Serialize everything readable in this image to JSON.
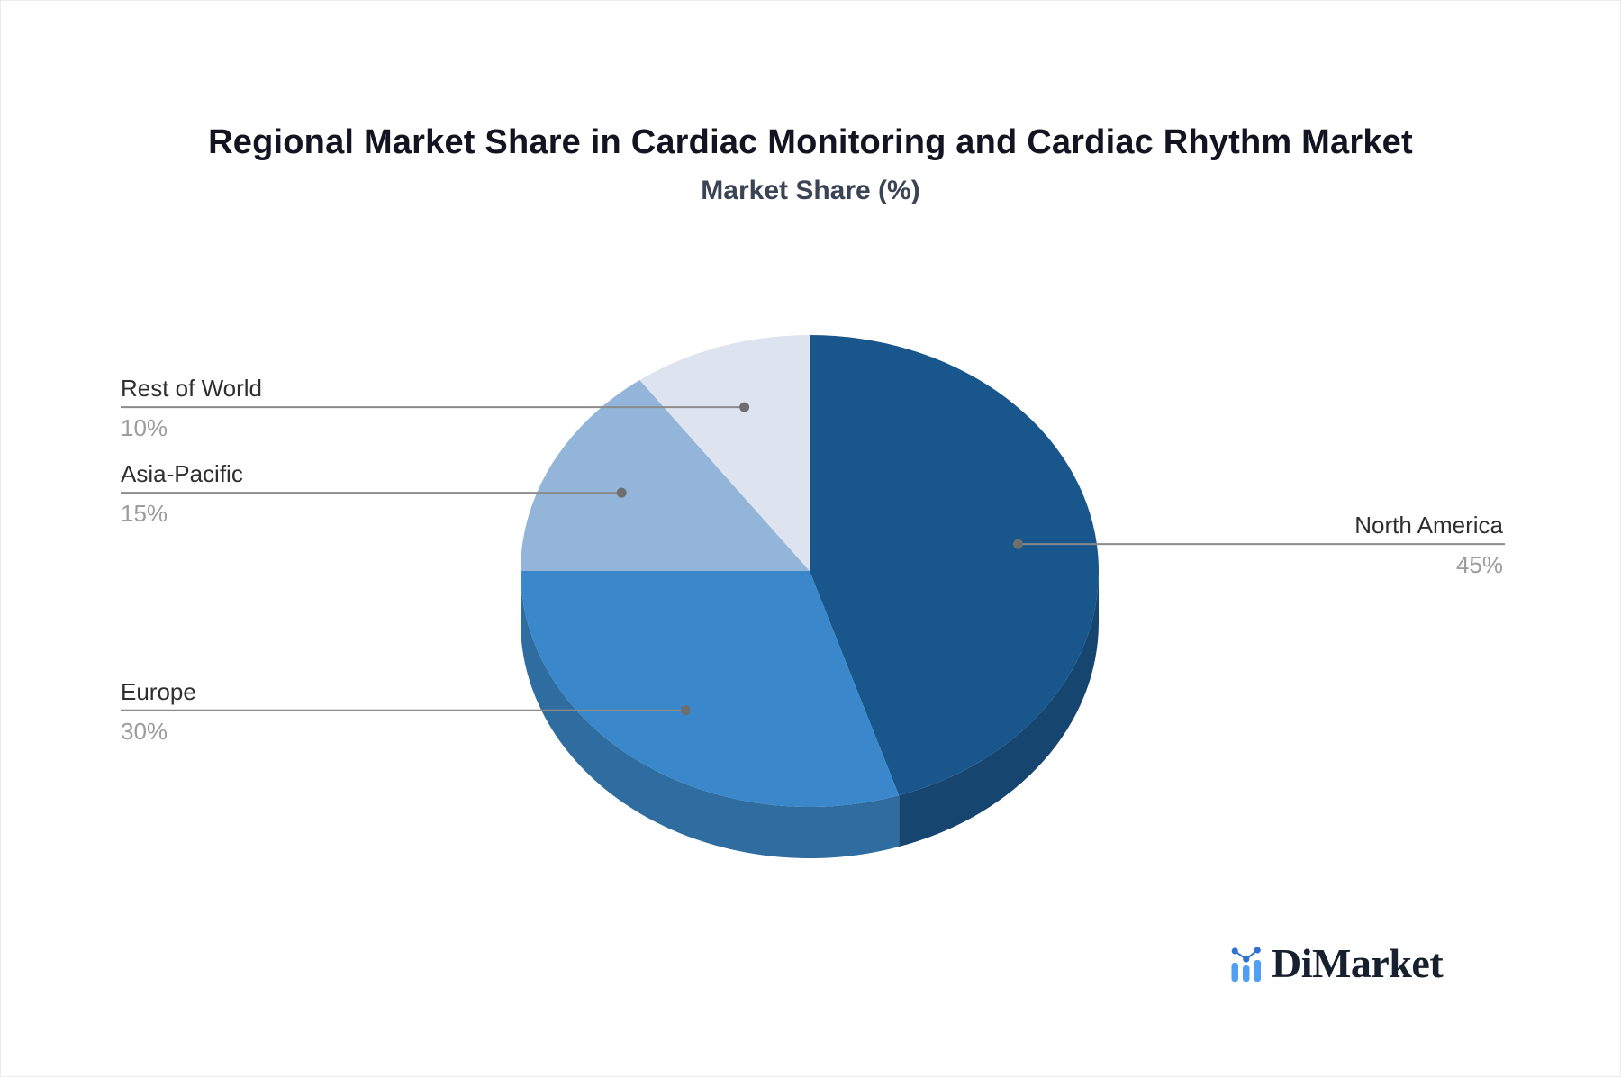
{
  "chart_data": {
    "type": "pie",
    "style": "3d",
    "direction": "clockwise",
    "start_angle_deg": 0,
    "title": "Regional Market Share in Cardiac Monitoring and Cardiac Rhythm Market",
    "subtitle": "Market Share (%)",
    "unit": "%",
    "legend_position": "callout-labels",
    "slices": [
      {
        "label": "North America",
        "value": 45,
        "percent_label": "45%",
        "color": "#19568C",
        "side_color": "#16456F",
        "callout_side": "right"
      },
      {
        "label": "Europe",
        "value": 30,
        "percent_label": "30%",
        "color": "#3A88CB",
        "side_color": "#2F6C9F",
        "callout_side": "left"
      },
      {
        "label": "Asia-Pacific",
        "value": 15,
        "percent_label": "15%",
        "color": "#92B5D9",
        "side_color": "#7491AE",
        "callout_side": "left"
      },
      {
        "label": "Rest of World",
        "value": 10,
        "percent_label": "10%",
        "color": "#DDE4EF",
        "side_color": "#B1B7C0",
        "callout_side": "left"
      }
    ]
  },
  "branding": {
    "logo_text": "DiMarket"
  },
  "colors": {
    "title_text": "#131322",
    "subtitle_text": "#3A4454",
    "label_text": "#2F2F2F",
    "percent_text": "#9C9C9C",
    "leader_line": "#8B8B8B",
    "leader_dot": "#6E6E6E",
    "logo_bar_color": "#4F9FF2",
    "logo_dot_color": "#2F72D2",
    "logo_text_color": "#16202E"
  }
}
